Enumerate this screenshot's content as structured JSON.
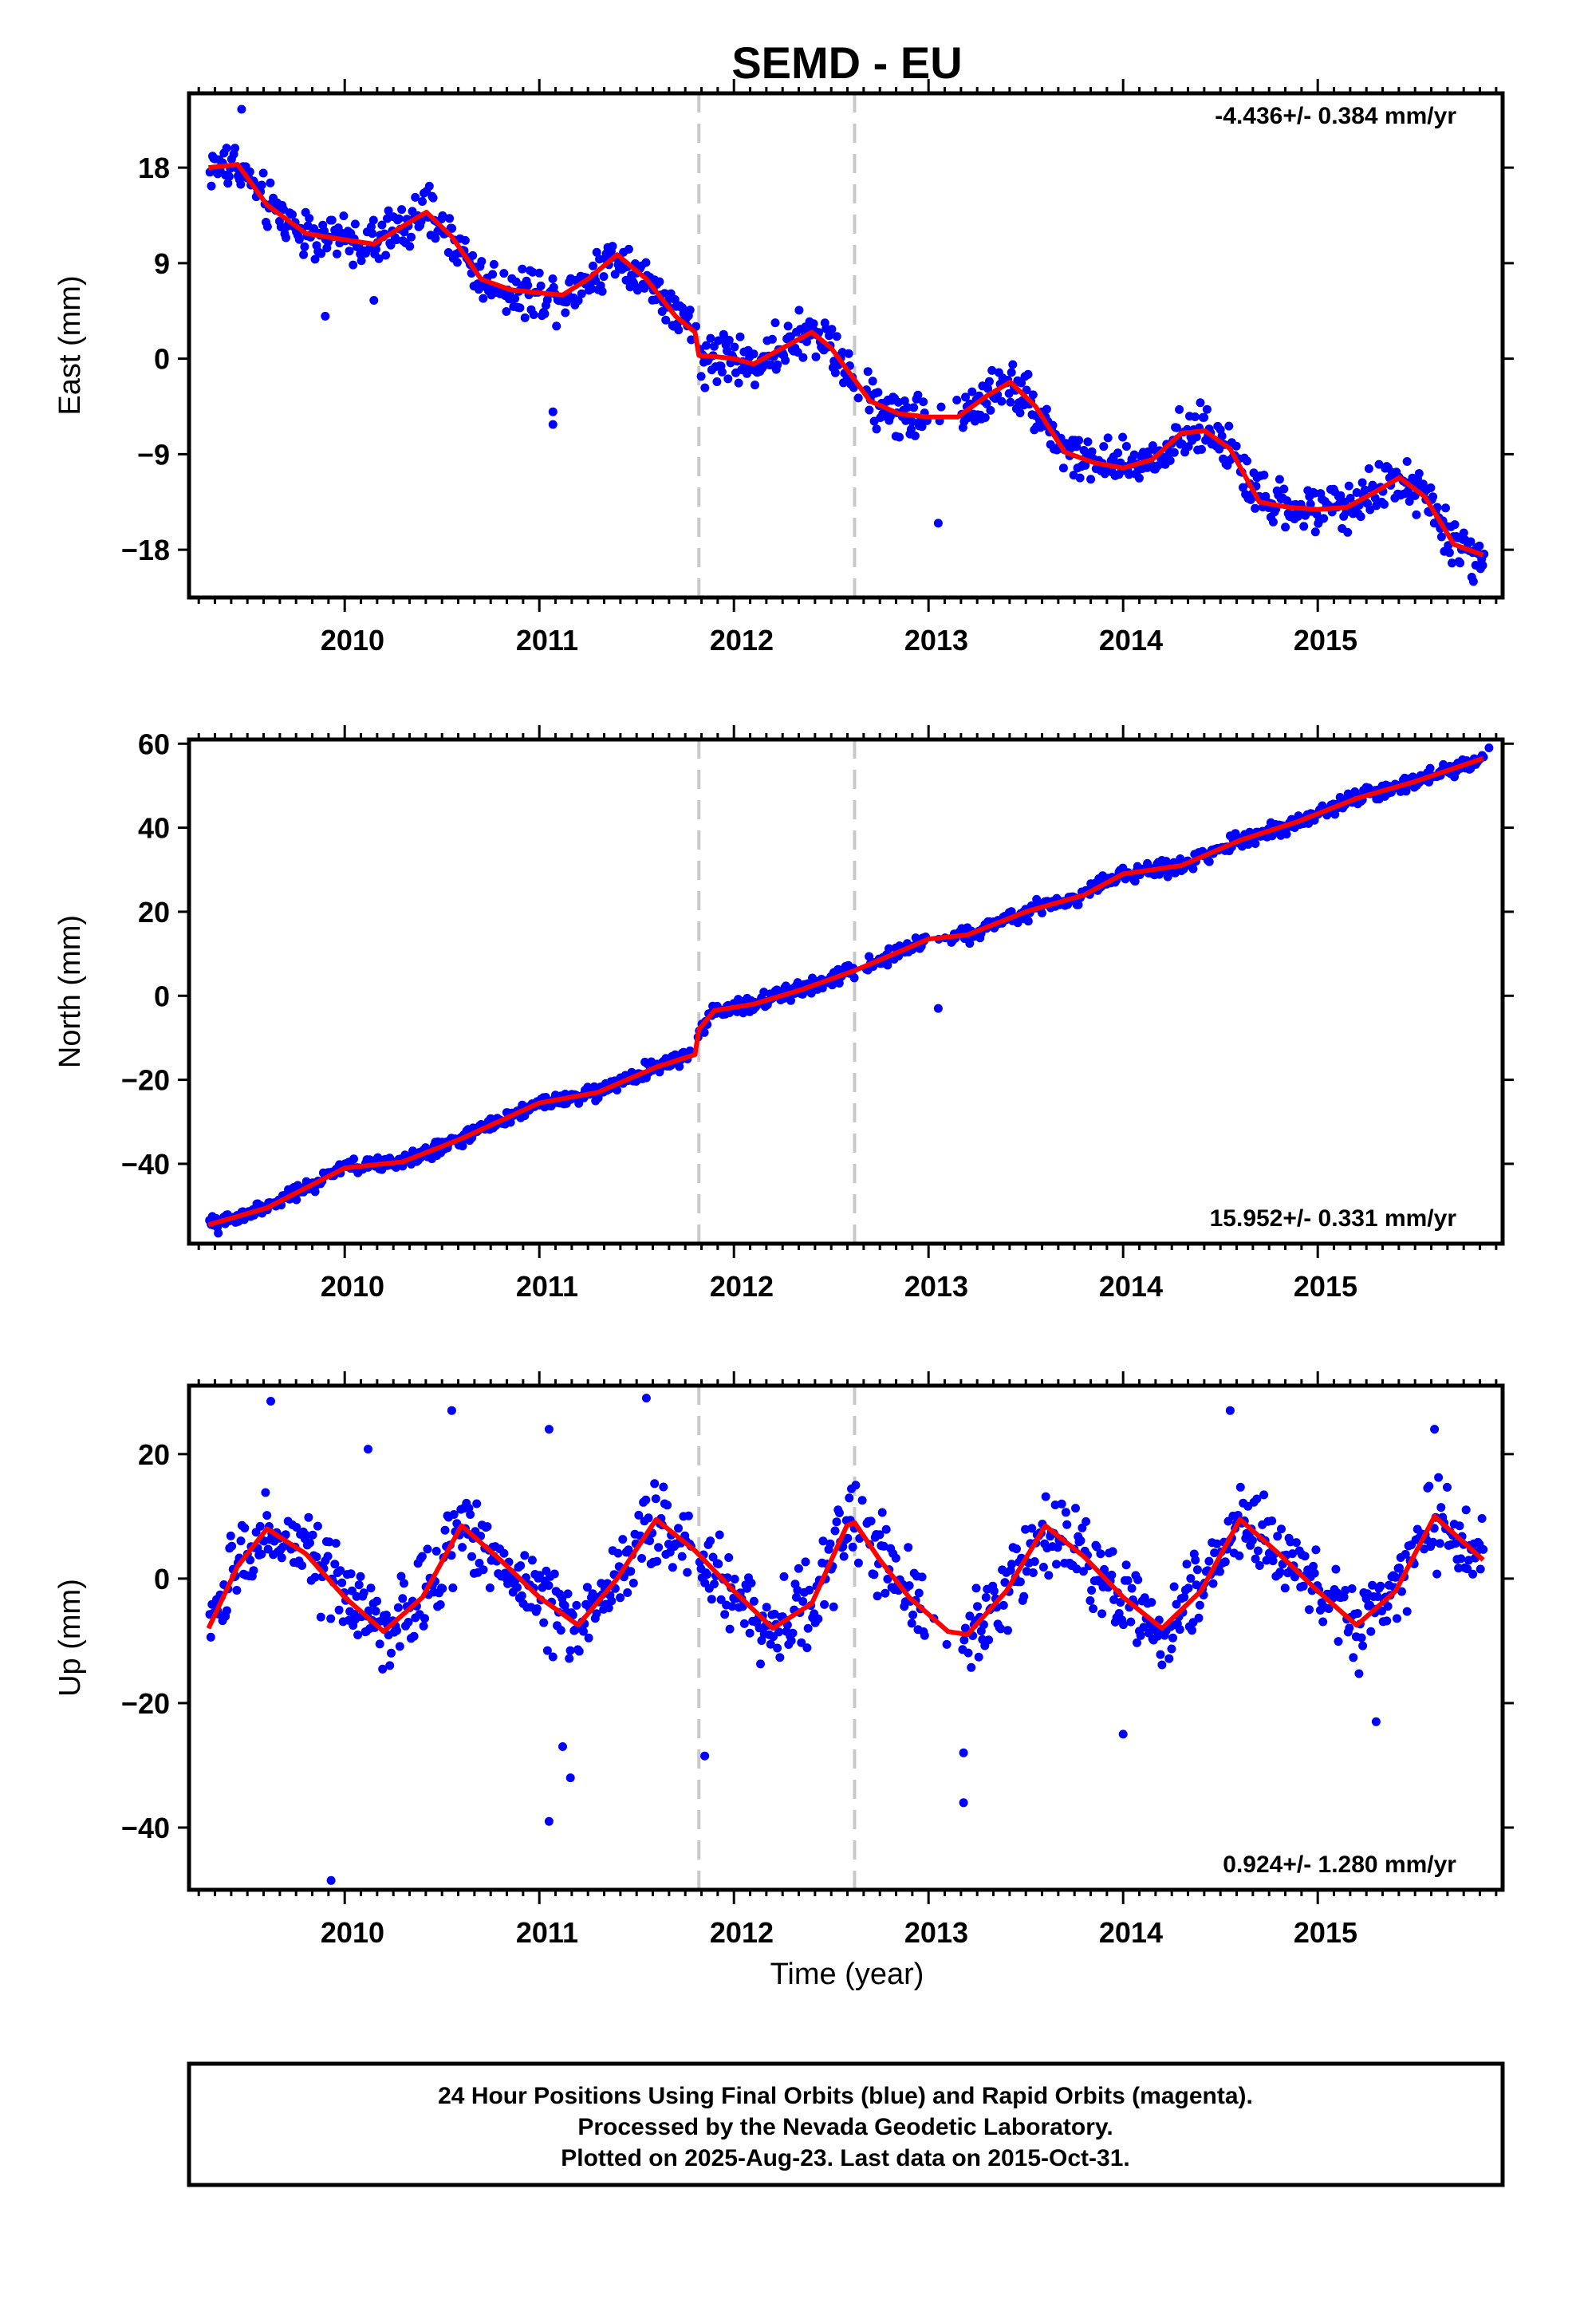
{
  "title": "SEMD - EU",
  "xlabel": "Time (year)",
  "footer": {
    "line1": "24 Hour Positions Using Final Orbits (blue) and Rapid Orbits (magenta).",
    "line2": "Processed by the Nevada Geodetic Laboratory.",
    "line3": "Plotted on 2025-Aug-23. Last data on 2015-Oct-31."
  },
  "colors": {
    "points": "#0000ff",
    "fit": "#ff0000",
    "breaks": "#c8c8c8",
    "frame": "#000000"
  },
  "chart_data": [
    {
      "type": "scatter",
      "component": "East",
      "ylabel": "East (mm)",
      "rate_text": "-4.436+/- 0.384 mm/yr",
      "rate_position": "top-right",
      "xlim": [
        2009.2,
        2015.95
      ],
      "ylim": [
        -22.5,
        25
      ],
      "yticks": [
        18,
        9,
        0,
        -9,
        -18
      ],
      "ytick_labels": [
        "18",
        "9",
        "0",
        "−9",
        "−18"
      ],
      "xticks": [
        2010,
        2011,
        2012,
        2013,
        2014,
        2015
      ],
      "xtick_labels": [
        "2010",
        "2011",
        "2012",
        "2013",
        "2014",
        "2015"
      ],
      "break_lines": [
        2011.82,
        2012.62
      ],
      "fit": {
        "x": [
          2009.3,
          2009.45,
          2009.6,
          2009.8,
          2010.0,
          2010.15,
          2010.3,
          2010.42,
          2010.55,
          2010.7,
          2010.85,
          2011.0,
          2011.12,
          2011.25,
          2011.4,
          2011.55,
          2011.7,
          2011.8,
          2011.82,
          2011.9,
          2012.0,
          2012.1,
          2012.25,
          2012.4,
          2012.5,
          2012.6,
          2012.7,
          2012.85,
          2013.0,
          2013.15,
          2013.3,
          2013.42,
          2013.55,
          2013.7,
          2013.85,
          2014.0,
          2014.15,
          2014.3,
          2014.42,
          2014.55,
          2014.7,
          2014.85,
          2015.0,
          2015.15,
          2015.3,
          2015.42,
          2015.55,
          2015.7,
          2015.85
        ],
        "y": [
          18,
          18.3,
          14.5,
          11.8,
          11.2,
          10.8,
          12.5,
          13.8,
          11.5,
          7.5,
          6.5,
          6.2,
          6.0,
          7.5,
          9.8,
          7.5,
          4.0,
          2.5,
          0.3,
          0.2,
          0.0,
          -0.5,
          1.0,
          2.5,
          1.0,
          -1.5,
          -4.0,
          -5.2,
          -5.5,
          -5.5,
          -3.5,
          -2.2,
          -4.5,
          -8.8,
          -9.8,
          -10.3,
          -9.5,
          -7.0,
          -6.8,
          -8.5,
          -13.5,
          -14.0,
          -14.2,
          -14.0,
          -12.5,
          -11.2,
          -13.0,
          -17.5,
          -18.5
        ]
      },
      "noise": 1.6,
      "outliers": [
        [
          2009.47,
          23.5
        ],
        [
          2011.07,
          -5.0
        ],
        [
          2011.07,
          -6.2
        ],
        [
          2013.05,
          -15.5
        ],
        [
          2009.9,
          4.0
        ],
        [
          2010.15,
          5.5
        ],
        [
          2015.8,
          -21.0
        ]
      ]
    },
    {
      "type": "scatter",
      "component": "North",
      "ylabel": "North (mm)",
      "rate_text": "15.952+/- 0.331 mm/yr",
      "rate_position": "bottom-right",
      "xlim": [
        2009.2,
        2015.95
      ],
      "ylim": [
        -59,
        61
      ],
      "yticks": [
        60,
        40,
        20,
        0,
        -20,
        -40
      ],
      "ytick_labels": [
        "60",
        "40",
        "20",
        "0",
        "−20",
        "−40"
      ],
      "xticks": [
        2010,
        2011,
        2012,
        2013,
        2014,
        2015
      ],
      "xtick_labels": [
        "2010",
        "2011",
        "2012",
        "2013",
        "2014",
        "2015"
      ],
      "break_lines": [
        2011.82,
        2012.62
      ],
      "fit": {
        "x": [
          2009.3,
          2009.6,
          2010.0,
          2010.3,
          2010.6,
          2011.0,
          2011.3,
          2011.6,
          2011.8,
          2011.82,
          2011.9,
          2012.1,
          2012.35,
          2012.62,
          2012.85,
          2013.0,
          2013.2,
          2013.5,
          2013.8,
          2014.0,
          2014.3,
          2014.6,
          2014.9,
          2015.2,
          2015.5,
          2015.85
        ],
        "y": [
          -54.5,
          -50.5,
          -41.0,
          -39.5,
          -34.0,
          -25.5,
          -23.0,
          -17.0,
          -14.0,
          -8.0,
          -3.5,
          -2.0,
          1.5,
          6.0,
          10.5,
          13.5,
          14.5,
          20.0,
          24.0,
          29.0,
          31.0,
          37.0,
          41.5,
          47.0,
          51.0,
          56.5
        ]
      },
      "noise": 1.3,
      "outliers": [
        [
          2013.05,
          -3.0
        ],
        [
          2015.88,
          59.0
        ],
        [
          2009.35,
          -56.5
        ]
      ]
    },
    {
      "type": "scatter",
      "component": "Up",
      "ylabel": "Up (mm)",
      "rate_text": "0.924+/- 1.280 mm/yr",
      "rate_position": "bottom-right",
      "xlim": [
        2009.2,
        2015.95
      ],
      "ylim": [
        -50,
        31
      ],
      "yticks": [
        20,
        0,
        -20,
        -40
      ],
      "ytick_labels": [
        "20",
        "0",
        "−20",
        "−40"
      ],
      "xticks": [
        2010,
        2011,
        2012,
        2013,
        2014,
        2015
      ],
      "xtick_labels": [
        "2010",
        "2011",
        "2012",
        "2013",
        "2014",
        "2015"
      ],
      "break_lines": [
        2011.82,
        2012.62
      ],
      "fit": {
        "x": [
          2009.3,
          2009.45,
          2009.6,
          2009.8,
          2010.0,
          2010.2,
          2010.4,
          2010.6,
          2010.8,
          2011.0,
          2011.2,
          2011.4,
          2011.6,
          2011.8,
          2012.0,
          2012.2,
          2012.4,
          2012.58,
          2012.62,
          2012.75,
          2012.9,
          2013.1,
          2013.2,
          2013.4,
          2013.6,
          2013.8,
          2014.0,
          2014.2,
          2014.4,
          2014.6,
          2014.8,
          2015.0,
          2015.2,
          2015.4,
          2015.6,
          2015.85
        ],
        "y": [
          -8.0,
          2.0,
          8.0,
          4.0,
          -3.0,
          -8.5,
          -3.0,
          8.5,
          3.0,
          -3.0,
          -7.5,
          0.0,
          9.5,
          4.5,
          -2.0,
          -8.0,
          -4.0,
          8.5,
          9.0,
          3.0,
          -3.0,
          -8.5,
          -9.0,
          -2.0,
          8.5,
          3.5,
          -3.0,
          -8.0,
          -2.0,
          9.5,
          4.0,
          -2.0,
          -7.5,
          -2.0,
          10.0,
          3.0
        ]
      },
      "noise": 4.5,
      "outliers": [
        [
          2009.93,
          -48.5
        ],
        [
          2010.12,
          20.8
        ],
        [
          2011.05,
          -39.0
        ],
        [
          2011.12,
          -27.0
        ],
        [
          2011.16,
          -32.0
        ],
        [
          2011.85,
          -28.5
        ],
        [
          2011.55,
          29.0
        ],
        [
          2013.18,
          -36.0
        ],
        [
          2013.18,
          -28.0
        ],
        [
          2009.62,
          28.5
        ],
        [
          2010.55,
          27.0
        ],
        [
          2011.05,
          24.0
        ],
        [
          2014.55,
          27.0
        ],
        [
          2015.6,
          24.0
        ],
        [
          2014.0,
          -25.0
        ],
        [
          2015.3,
          -23.0
        ]
      ]
    }
  ]
}
